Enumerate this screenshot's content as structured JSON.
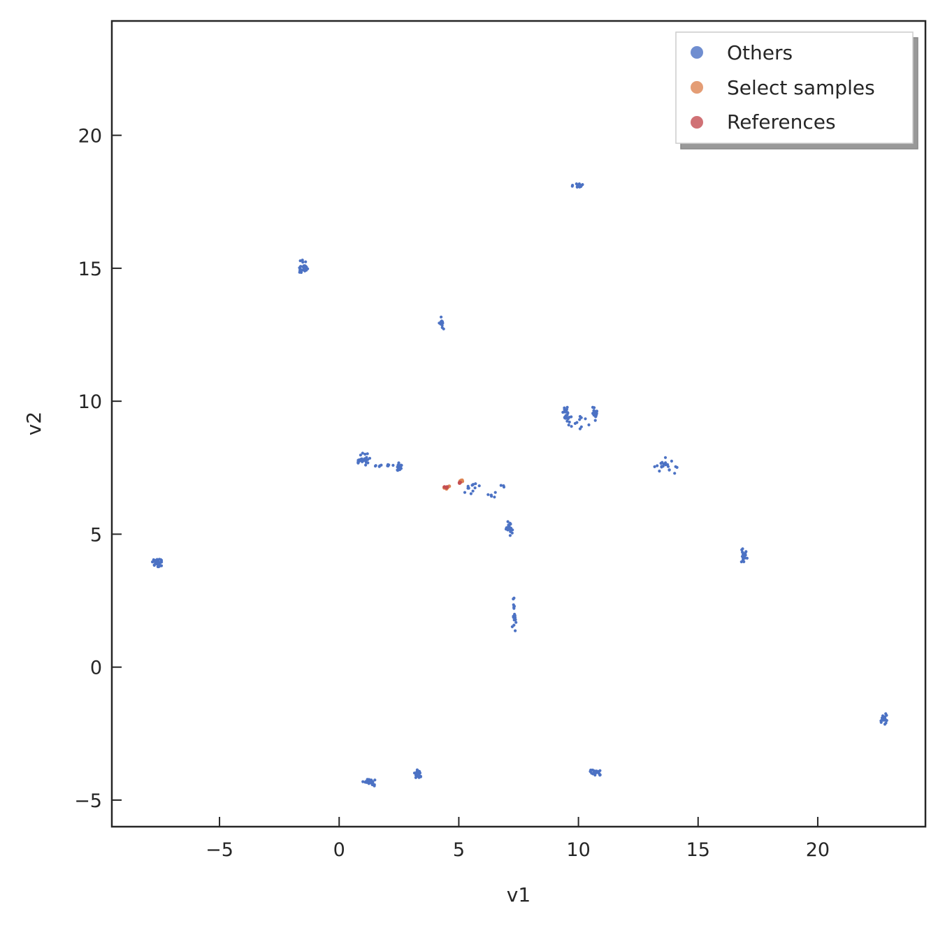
{
  "chart_data": {
    "type": "scatter",
    "title": "",
    "xlabel": "v1",
    "ylabel": "v2",
    "xlim": [
      -9.5,
      24.5
    ],
    "ylim": [
      -6,
      24.3
    ],
    "xticks": [
      -5,
      0,
      5,
      10,
      15,
      20
    ],
    "yticks": [
      -5,
      0,
      5,
      10,
      15,
      20
    ],
    "grid": false,
    "legend_position": "top-right",
    "series": [
      {
        "name": "Others",
        "color": "#4c72c4",
        "clusters": [
          {
            "cx": 10.0,
            "cy": 18.1,
            "sx": 0.18,
            "sy": 0.07,
            "n": 16
          },
          {
            "cx": -1.5,
            "cy": 15.05,
            "sx": 0.15,
            "sy": 0.15,
            "n": 28
          },
          {
            "cx": 4.25,
            "cy": 12.9,
            "sx": 0.08,
            "sy": 0.15,
            "n": 14
          },
          {
            "cx": 9.5,
            "cy": 9.55,
            "sx": 0.1,
            "sy": 0.2,
            "n": 22
          },
          {
            "cx": 10.7,
            "cy": 9.55,
            "sx": 0.12,
            "sy": 0.15,
            "n": 20
          },
          {
            "cx": 10.0,
            "cy": 9.25,
            "sx": 0.3,
            "sy": 0.3,
            "n": 12
          },
          {
            "cx": 13.7,
            "cy": 7.55,
            "sx": 0.35,
            "sy": 0.17,
            "n": 20
          },
          {
            "cx": 1.0,
            "cy": 7.8,
            "sx": 0.25,
            "sy": 0.15,
            "n": 28
          },
          {
            "cx": 1.8,
            "cy": 7.6,
            "sx": 0.35,
            "sy": 0.05,
            "n": 10
          },
          {
            "cx": 2.5,
            "cy": 7.5,
            "sx": 0.1,
            "sy": 0.1,
            "n": 16
          },
          {
            "cx": 5.6,
            "cy": 6.7,
            "sx": 0.4,
            "sy": 0.15,
            "n": 12
          },
          {
            "cx": 6.3,
            "cy": 6.45,
            "sx": 0.2,
            "sy": 0.07,
            "n": 6
          },
          {
            "cx": 6.8,
            "cy": 6.8,
            "sx": 0.1,
            "sy": 0.08,
            "n": 3
          },
          {
            "cx": 7.1,
            "cy": 5.2,
            "sx": 0.1,
            "sy": 0.2,
            "n": 22
          },
          {
            "cx": -7.6,
            "cy": 3.95,
            "sx": 0.18,
            "sy": 0.13,
            "n": 30
          },
          {
            "cx": 16.9,
            "cy": 4.2,
            "sx": 0.1,
            "sy": 0.2,
            "n": 22
          },
          {
            "cx": 7.3,
            "cy": 2.0,
            "sx": 0.05,
            "sy": 0.35,
            "n": 22
          },
          {
            "cx": 22.8,
            "cy": -1.95,
            "sx": 0.12,
            "sy": 0.13,
            "n": 22
          },
          {
            "cx": 10.7,
            "cy": -3.95,
            "sx": 0.15,
            "sy": 0.07,
            "n": 24
          },
          {
            "cx": 3.3,
            "cy": -4.0,
            "sx": 0.1,
            "sy": 0.12,
            "n": 26
          },
          {
            "cx": 1.2,
            "cy": -4.3,
            "sx": 0.25,
            "sy": 0.1,
            "n": 22
          }
        ]
      },
      {
        "name": "Select samples",
        "color": "#dd8452",
        "clusters": [
          {
            "cx": 4.5,
            "cy": 6.75,
            "sx": 0.1,
            "sy": 0.03,
            "n": 5
          },
          {
            "cx": 5.1,
            "cy": 6.95,
            "sx": 0.07,
            "sy": 0.07,
            "n": 6
          }
        ]
      },
      {
        "name": "References",
        "color": "#c44e52",
        "clusters": [
          {
            "cx": 4.5,
            "cy": 6.75,
            "sx": 0.08,
            "sy": 0.03,
            "n": 3
          },
          {
            "cx": 5.05,
            "cy": 6.95,
            "sx": 0.06,
            "sy": 0.06,
            "n": 3
          }
        ]
      }
    ]
  }
}
